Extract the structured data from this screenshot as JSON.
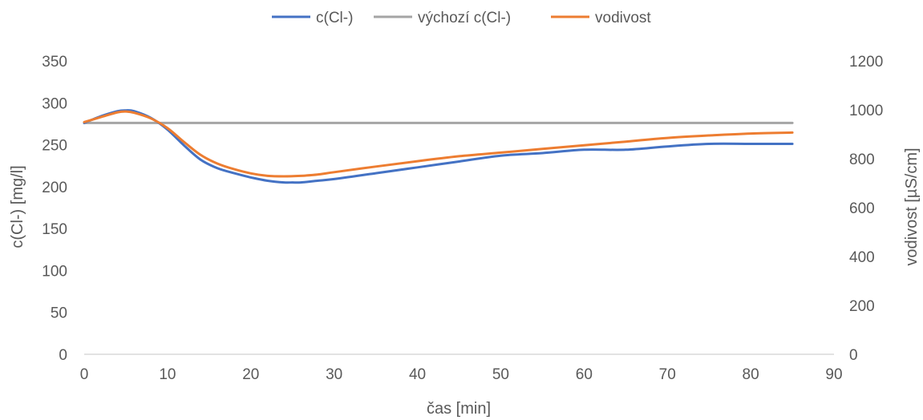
{
  "chart_data": {
    "type": "line",
    "title": "",
    "xlabel": "čas [min]",
    "ylabel_left": "c(Cl-) [mg/l]",
    "ylabel_right": "vodivost [µS/cm]",
    "xlim": [
      0,
      90
    ],
    "ylim_left": [
      0,
      350
    ],
    "ylim_right": [
      0,
      1200
    ],
    "x_ticks": [
      0,
      10,
      20,
      30,
      40,
      50,
      60,
      70,
      80,
      90
    ],
    "y_left_ticks": [
      0,
      50,
      100,
      150,
      200,
      250,
      300,
      350
    ],
    "y_right_ticks": [
      0,
      200,
      400,
      600,
      800,
      1000,
      1200
    ],
    "grid": "none",
    "legend_position": "top",
    "series": [
      {
        "name": "c(Cl-)",
        "axis": "left",
        "color": "#4472C4",
        "x": [
          0,
          2,
          4,
          5,
          6,
          8,
          10,
          12,
          14,
          16,
          18,
          20,
          22,
          24,
          25,
          26,
          28,
          30,
          35,
          40,
          45,
          50,
          55,
          60,
          65,
          70,
          75,
          80,
          85
        ],
        "y": [
          276,
          284,
          290,
          291,
          290,
          282,
          268,
          249,
          232,
          222,
          216,
          211,
          207,
          205,
          205,
          205,
          207,
          209,
          216,
          223,
          230,
          237,
          240,
          244,
          244,
          248,
          251,
          251,
          251
        ]
      },
      {
        "name": "výchozí c(Cl-)",
        "axis": "left",
        "color": "#A5A5A5",
        "x": [
          0,
          85
        ],
        "y": [
          276,
          276
        ]
      },
      {
        "name": "vodivost",
        "axis": "right",
        "color": "#ED7D31",
        "x": [
          0,
          2,
          4,
          5,
          6,
          8,
          10,
          12,
          14,
          16,
          18,
          20,
          22,
          24,
          26,
          28,
          30,
          35,
          40,
          45,
          50,
          55,
          60,
          65,
          70,
          75,
          80,
          85
        ],
        "y": [
          950,
          970,
          990,
          993,
          988,
          965,
          925,
          868,
          815,
          780,
          757,
          740,
          730,
          728,
          730,
          735,
          745,
          768,
          790,
          810,
          825,
          840,
          855,
          870,
          885,
          895,
          903,
          907
        ]
      }
    ]
  }
}
